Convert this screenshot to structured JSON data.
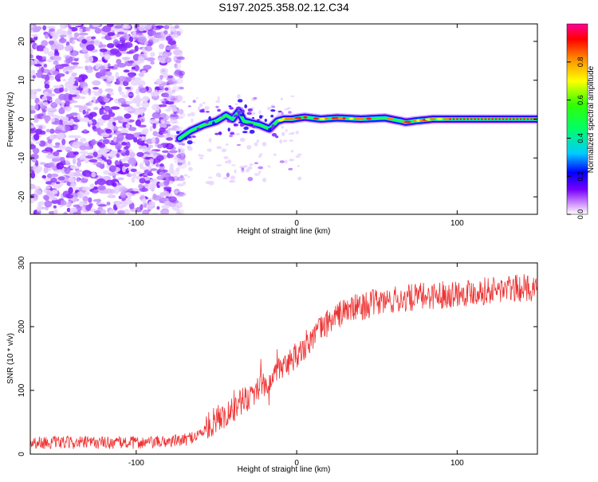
{
  "title": "S197.2025.358.02.12.C34",
  "chart_data": [
    {
      "type": "heatmap",
      "xlabel": "Height of straight line (km)",
      "ylabel": "Frequency (Hz)",
      "xlim": [
        -166,
        150
      ],
      "ylim": [
        -24.5,
        24.5
      ],
      "x_ticks": [
        -100,
        0,
        100
      ],
      "x_tick_labels": [
        "-100",
        "0",
        "100"
      ],
      "y_ticks": [
        20,
        10,
        0,
        -10,
        -20
      ],
      "y_tick_labels": [
        "20",
        "10",
        "0",
        "-10",
        "-20"
      ],
      "ridge": {
        "x": [
          -73,
          -66,
          -58,
          -50,
          -44,
          -40,
          -36,
          -33,
          -28,
          -23,
          -20,
          -17,
          -12,
          -8,
          -3,
          0,
          5,
          15,
          25,
          40,
          55,
          65,
          68,
          75,
          85,
          95,
          110,
          125,
          150
        ],
        "y": [
          -5,
          -3,
          -1.5,
          -0.5,
          1,
          0,
          2,
          -0.5,
          -1,
          -1.5,
          -2,
          -2.5,
          -0.5,
          0,
          0,
          0.2,
          0.5,
          0,
          0.3,
          0,
          0.3,
          -0.5,
          -0.8,
          -0.4,
          0,
          0,
          0,
          0,
          0
        ]
      },
      "noise_region": {
        "x_max": -77,
        "y_range": [
          -24,
          24
        ]
      },
      "colorbar": {
        "label": "Normalized spectral amplitude",
        "range": [
          0,
          1
        ],
        "ticks": [
          0.0,
          0.2,
          0.4,
          0.6,
          0.8
        ],
        "tick_labels": [
          "0.0",
          "0.2",
          "0.4",
          "0.6",
          "0.8"
        ],
        "colormap": [
          "#ffffff",
          "#9900ff",
          "#0000ff",
          "#00ccff",
          "#00ff66",
          "#33ff00",
          "#ffff00",
          "#ff8800",
          "#ff0000",
          "#ff0099"
        ]
      }
    },
    {
      "type": "line",
      "xlabel": "Height of straight line (km)",
      "ylabel": "SNR (10 * v/v)",
      "xlim": [
        -166,
        150
      ],
      "ylim": [
        0,
        300
      ],
      "x_ticks": [
        -100,
        0,
        100
      ],
      "x_tick_labels": [
        "-100",
        "0",
        "100"
      ],
      "y_ticks": [
        0,
        100,
        200,
        300
      ],
      "y_tick_labels": [
        "0",
        "100",
        "200",
        "300"
      ],
      "color": "#ee3333",
      "trend": {
        "x": [
          -166,
          -90,
          -70,
          -60,
          -50,
          -40,
          -30,
          -20,
          -10,
          0,
          10,
          20,
          30,
          50,
          80,
          110,
          150
        ],
        "y": [
          18,
          18,
          22,
          32,
          55,
          70,
          90,
          110,
          130,
          155,
          185,
          208,
          225,
          238,
          248,
          255,
          262
        ]
      }
    }
  ]
}
